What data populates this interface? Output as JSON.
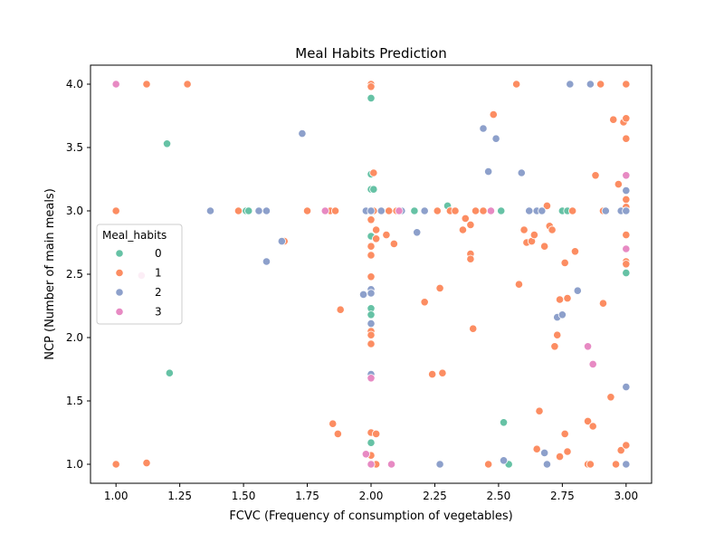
{
  "chart_data": {
    "type": "scatter",
    "title": "Meal Habits Prediction",
    "xlabel": "FCVC (Frequency of consumption of vegetables)",
    "ylabel": "NCP (Number of main meals)",
    "xlim": [
      0.9,
      3.1
    ],
    "ylim": [
      0.85,
      4.15
    ],
    "xticks": [
      "1.00",
      "1.25",
      "1.50",
      "1.75",
      "2.00",
      "2.25",
      "2.50",
      "2.75",
      "3.00"
    ],
    "xtick_values": [
      1.0,
      1.25,
      1.5,
      1.75,
      2.0,
      2.25,
      2.5,
      2.75,
      3.0
    ],
    "yticks": [
      "1.0",
      "1.5",
      "2.0",
      "2.5",
      "3.0",
      "3.5",
      "4.0"
    ],
    "ytick_values": [
      1.0,
      1.5,
      2.0,
      2.5,
      3.0,
      3.5,
      4.0
    ],
    "grid": false,
    "legend": {
      "title": "Meal_habits",
      "placement": "center-left",
      "entries": [
        "0",
        "1",
        "2",
        "3"
      ]
    },
    "series": [
      {
        "name": "0",
        "color": "#66c2a5",
        "points": [
          [
            1.2,
            3.53
          ],
          [
            1.21,
            1.72
          ],
          [
            1.51,
            3.0
          ],
          [
            1.52,
            3.0
          ],
          [
            2.0,
            3.89
          ],
          [
            2.0,
            3.29
          ],
          [
            2.0,
            3.17
          ],
          [
            2.0,
            2.8
          ],
          [
            2.0,
            2.23
          ],
          [
            2.0,
            2.18
          ],
          [
            2.0,
            1.17
          ],
          [
            2.01,
            3.17
          ],
          [
            2.17,
            3.0
          ],
          [
            2.3,
            3.04
          ],
          [
            2.51,
            3.0
          ],
          [
            2.52,
            1.33
          ],
          [
            2.54,
            1.0
          ],
          [
            2.75,
            3.0
          ],
          [
            2.77,
            3.0
          ],
          [
            3.0,
            2.51
          ]
        ]
      },
      {
        "name": "1",
        "color": "#fc8d62",
        "points": [
          [
            1.0,
            3.0
          ],
          [
            1.0,
            1.0
          ],
          [
            1.12,
            4.0
          ],
          [
            1.12,
            1.01
          ],
          [
            1.28,
            4.0
          ],
          [
            1.48,
            3.0
          ],
          [
            1.66,
            2.76
          ],
          [
            1.75,
            3.0
          ],
          [
            1.84,
            3.0
          ],
          [
            1.85,
            1.32
          ],
          [
            1.86,
            3.0
          ],
          [
            1.87,
            1.24
          ],
          [
            1.88,
            2.22
          ],
          [
            2.0,
            4.0
          ],
          [
            2.0,
            3.98
          ],
          [
            2.0,
            2.93
          ],
          [
            2.0,
            2.72
          ],
          [
            2.0,
            2.65
          ],
          [
            2.0,
            2.48
          ],
          [
            2.0,
            2.05
          ],
          [
            2.0,
            2.02
          ],
          [
            2.0,
            1.95
          ],
          [
            2.0,
            1.25
          ],
          [
            2.0,
            1.07
          ],
          [
            2.0,
            1.0
          ],
          [
            2.01,
            3.3
          ],
          [
            2.01,
            3.0
          ],
          [
            2.02,
            2.85
          ],
          [
            2.02,
            2.78
          ],
          [
            2.02,
            1.24
          ],
          [
            2.02,
            1.0
          ],
          [
            2.06,
            2.81
          ],
          [
            2.07,
            3.0
          ],
          [
            2.09,
            2.74
          ],
          [
            2.1,
            3.0
          ],
          [
            2.21,
            2.28
          ],
          [
            2.24,
            1.71
          ],
          [
            2.26,
            3.0
          ],
          [
            2.27,
            2.39
          ],
          [
            2.28,
            1.72
          ],
          [
            2.31,
            3.0
          ],
          [
            2.33,
            3.0
          ],
          [
            2.36,
            2.85
          ],
          [
            2.37,
            2.94
          ],
          [
            2.39,
            2.89
          ],
          [
            2.39,
            2.66
          ],
          [
            2.39,
            2.62
          ],
          [
            2.4,
            2.07
          ],
          [
            2.41,
            3.0
          ],
          [
            2.44,
            3.0
          ],
          [
            2.46,
            1.0
          ],
          [
            2.48,
            3.76
          ],
          [
            2.57,
            4.0
          ],
          [
            2.58,
            2.42
          ],
          [
            2.6,
            2.85
          ],
          [
            2.61,
            2.75
          ],
          [
            2.63,
            2.76
          ],
          [
            2.64,
            2.81
          ],
          [
            2.65,
            1.12
          ],
          [
            2.66,
            1.42
          ],
          [
            2.68,
            2.72
          ],
          [
            2.69,
            3.04
          ],
          [
            2.7,
            2.88
          ],
          [
            2.71,
            2.85
          ],
          [
            2.72,
            1.93
          ],
          [
            2.73,
            2.02
          ],
          [
            2.74,
            2.3
          ],
          [
            2.74,
            1.06
          ],
          [
            2.76,
            2.59
          ],
          [
            2.76,
            1.24
          ],
          [
            2.77,
            2.31
          ],
          [
            2.77,
            1.1
          ],
          [
            2.79,
            3.0
          ],
          [
            2.8,
            2.68
          ],
          [
            2.85,
            1.34
          ],
          [
            2.85,
            1.0
          ],
          [
            2.86,
            1.0
          ],
          [
            2.87,
            1.3
          ],
          [
            2.88,
            3.28
          ],
          [
            2.9,
            4.0
          ],
          [
            2.91,
            3.0
          ],
          [
            2.91,
            2.27
          ],
          [
            2.94,
            1.53
          ],
          [
            2.95,
            3.72
          ],
          [
            2.96,
            1.0
          ],
          [
            2.97,
            3.21
          ],
          [
            2.98,
            1.11
          ],
          [
            2.99,
            3.7
          ],
          [
            3.0,
            4.0
          ],
          [
            3.0,
            3.73
          ],
          [
            3.0,
            3.57
          ],
          [
            3.0,
            3.09
          ],
          [
            3.0,
            3.03
          ],
          [
            3.0,
            3.0
          ],
          [
            3.0,
            2.81
          ],
          [
            3.0,
            2.6
          ],
          [
            3.0,
            2.58
          ],
          [
            3.0,
            1.15
          ]
        ]
      },
      {
        "name": "2",
        "color": "#8da0cb",
        "points": [
          [
            1.37,
            3.0
          ],
          [
            1.56,
            3.0
          ],
          [
            1.59,
            3.0
          ],
          [
            1.59,
            2.6
          ],
          [
            1.65,
            2.76
          ],
          [
            1.73,
            3.61
          ],
          [
            1.97,
            2.34
          ],
          [
            1.98,
            3.0
          ],
          [
            2.0,
            3.0
          ],
          [
            2.0,
            2.38
          ],
          [
            2.0,
            2.35
          ],
          [
            2.0,
            2.11
          ],
          [
            2.0,
            1.71
          ],
          [
            2.04,
            3.0
          ],
          [
            2.12,
            3.0
          ],
          [
            2.18,
            2.83
          ],
          [
            2.21,
            3.0
          ],
          [
            2.27,
            1.0
          ],
          [
            2.44,
            3.65
          ],
          [
            2.46,
            3.31
          ],
          [
            2.49,
            3.57
          ],
          [
            2.52,
            1.03
          ],
          [
            2.59,
            3.3
          ],
          [
            2.62,
            3.0
          ],
          [
            2.65,
            3.0
          ],
          [
            2.67,
            3.0
          ],
          [
            2.68,
            1.09
          ],
          [
            2.69,
            1.0
          ],
          [
            2.73,
            2.16
          ],
          [
            2.75,
            2.18
          ],
          [
            2.78,
            4.0
          ],
          [
            2.81,
            2.37
          ],
          [
            2.86,
            4.0
          ],
          [
            2.92,
            3.0
          ],
          [
            2.98,
            3.0
          ],
          [
            3.0,
            3.16
          ],
          [
            3.0,
            3.0
          ],
          [
            3.0,
            1.61
          ],
          [
            3.0,
            1.0
          ]
        ]
      },
      {
        "name": "3",
        "color": "#e78ac3",
        "points": [
          [
            1.0,
            4.0
          ],
          [
            1.1,
            2.49
          ],
          [
            1.82,
            3.0
          ],
          [
            1.98,
            1.08
          ],
          [
            2.0,
            1.68
          ],
          [
            2.0,
            1.0
          ],
          [
            2.08,
            1.0
          ],
          [
            2.11,
            3.0
          ],
          [
            2.47,
            3.0
          ],
          [
            2.85,
            1.93
          ],
          [
            2.87,
            1.79
          ],
          [
            3.0,
            3.28
          ],
          [
            3.0,
            2.7
          ]
        ]
      }
    ]
  }
}
